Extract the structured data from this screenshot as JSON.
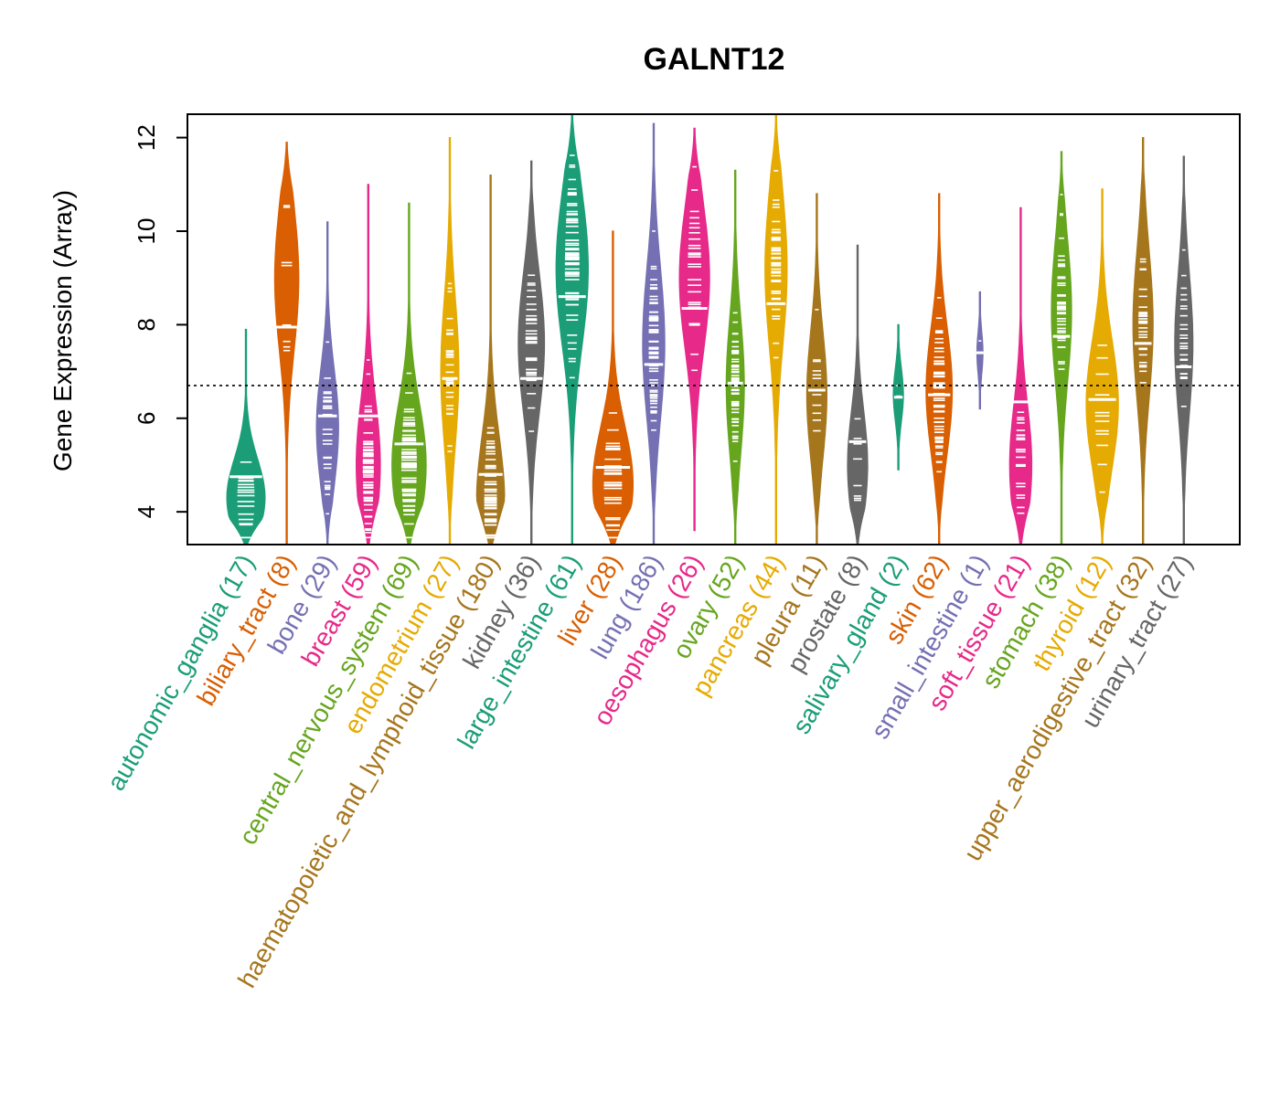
{
  "chart_data": {
    "type": "violin",
    "title": "GALNT12",
    "ylabel": "Gene Expression (Array)",
    "xlabel": "",
    "ylim": [
      3.3,
      12.5
    ],
    "yticks": [
      4,
      6,
      8,
      10,
      12
    ],
    "reference_line": 6.7,
    "categories": [
      {
        "name": "autonomic_ganglia",
        "n": 17,
        "label": "autonomic_ganglia (17)",
        "color": "#1B9E77",
        "min": 3.3,
        "max": 7.9,
        "median": 4.75,
        "peak": 4.3,
        "width": 0.95
      },
      {
        "name": "biliary_tract",
        "n": 8,
        "label": "biliary_tract (8)",
        "color": "#D95F02",
        "min": 3.3,
        "max": 11.9,
        "median": 7.95,
        "peak": 9.0,
        "width": 0.6
      },
      {
        "name": "bone",
        "n": 29,
        "label": "bone (29)",
        "color": "#7570B3",
        "min": 3.3,
        "max": 10.2,
        "median": 6.05,
        "peak": 5.8,
        "width": 0.55
      },
      {
        "name": "breast",
        "n": 59,
        "label": "breast (59)",
        "color": "#E7298A",
        "min": 3.3,
        "max": 11.0,
        "median": 6.05,
        "peak": 5.0,
        "width": 0.6
      },
      {
        "name": "central_nervous_system",
        "n": 69,
        "label": "central_nervous_system (69)",
        "color": "#66A61E",
        "min": 3.3,
        "max": 10.6,
        "median": 5.45,
        "peak": 5.0,
        "width": 0.85
      },
      {
        "name": "endometrium",
        "n": 27,
        "label": "endometrium (27)",
        "color": "#E6AB02",
        "min": 3.3,
        "max": 12.0,
        "median": 6.85,
        "peak": 7.0,
        "width": 0.45
      },
      {
        "name": "haematopoietic_and_lymphoid_tissue",
        "n": 180,
        "label": "haematopoietic_and_lymphoid_tissue (180)",
        "color": "#A6761D",
        "min": 3.3,
        "max": 11.2,
        "median": 4.8,
        "peak": 4.2,
        "width": 0.7
      },
      {
        "name": "kidney",
        "n": 36,
        "label": "kidney (36)",
        "color": "#666666",
        "min": 3.3,
        "max": 11.5,
        "median": 6.85,
        "peak": 7.6,
        "width": 0.65
      },
      {
        "name": "large_intestine",
        "n": 61,
        "label": "large_intestine (61)",
        "color": "#1B9E77",
        "min": 3.3,
        "max": 12.5,
        "median": 8.6,
        "peak": 9.2,
        "width": 0.8
      },
      {
        "name": "liver",
        "n": 28,
        "label": "liver (28)",
        "color": "#D95F02",
        "min": 3.3,
        "max": 10.0,
        "median": 4.95,
        "peak": 4.6,
        "width": 1.0
      },
      {
        "name": "lung",
        "n": 186,
        "label": "lung (186)",
        "color": "#7570B3",
        "min": 3.3,
        "max": 12.3,
        "median": 7.15,
        "peak": 7.6,
        "width": 0.55
      },
      {
        "name": "oesophagus",
        "n": 26,
        "label": "oesophagus (26)",
        "color": "#E7298A",
        "min": 3.6,
        "max": 12.2,
        "median": 8.35,
        "peak": 9.0,
        "width": 0.75
      },
      {
        "name": "ovary",
        "n": 52,
        "label": "ovary (52)",
        "color": "#66A61E",
        "min": 3.3,
        "max": 11.3,
        "median": 6.75,
        "peak": 6.7,
        "width": 0.45
      },
      {
        "name": "pancreas",
        "n": 44,
        "label": "pancreas (44)",
        "color": "#E6AB02",
        "min": 3.3,
        "max": 12.5,
        "median": 8.45,
        "peak": 9.2,
        "width": 0.55
      },
      {
        "name": "pleura",
        "n": 11,
        "label": "pleura (11)",
        "color": "#A6761D",
        "min": 3.3,
        "max": 10.8,
        "median": 6.6,
        "peak": 6.5,
        "width": 0.5
      },
      {
        "name": "prostate",
        "n": 8,
        "label": "prostate (8)",
        "color": "#666666",
        "min": 3.3,
        "max": 9.7,
        "median": 5.5,
        "peak": 5.0,
        "width": 0.5
      },
      {
        "name": "salivary_gland",
        "n": 2,
        "label": "salivary_gland (2)",
        "color": "#1B9E77",
        "min": 4.9,
        "max": 8.0,
        "median": 6.45,
        "peak": 6.5,
        "width": 0.25
      },
      {
        "name": "skin",
        "n": 62,
        "label": "skin (62)",
        "color": "#D95F02",
        "min": 3.3,
        "max": 10.8,
        "median": 6.5,
        "peak": 6.6,
        "width": 0.65
      },
      {
        "name": "small_intestine",
        "n": 1,
        "label": "small_intestine (1)",
        "color": "#7570B3",
        "min": 6.2,
        "max": 8.7,
        "median": 7.4,
        "peak": 7.4,
        "width": 0.15
      },
      {
        "name": "soft_tissue",
        "n": 21,
        "label": "soft_tissue (21)",
        "color": "#E7298A",
        "min": 3.3,
        "max": 10.5,
        "median": 6.35,
        "peak": 5.0,
        "width": 0.55
      },
      {
        "name": "stomach",
        "n": 38,
        "label": "stomach (38)",
        "color": "#66A61E",
        "min": 3.3,
        "max": 11.7,
        "median": 7.75,
        "peak": 8.3,
        "width": 0.5
      },
      {
        "name": "thyroid",
        "n": 12,
        "label": "thyroid (12)",
        "color": "#E6AB02",
        "min": 3.3,
        "max": 10.9,
        "median": 6.4,
        "peak": 6.3,
        "width": 0.8
      },
      {
        "name": "upper_aerodigestive_tract",
        "n": 32,
        "label": "upper_aerodigestive_tract (32)",
        "color": "#A6761D",
        "min": 3.3,
        "max": 12.0,
        "median": 7.6,
        "peak": 8.0,
        "width": 0.5
      },
      {
        "name": "urinary_tract",
        "n": 27,
        "label": "urinary_tract (27)",
        "color": "#666666",
        "min": 3.3,
        "max": 11.6,
        "median": 7.1,
        "peak": 7.6,
        "width": 0.45
      }
    ]
  }
}
